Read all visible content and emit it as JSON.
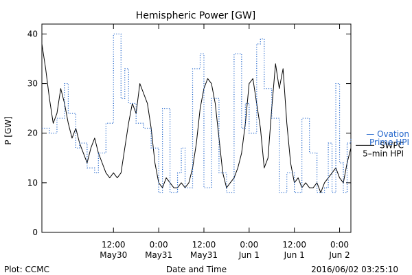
{
  "chart_data": {
    "type": "line",
    "title": "Hemispheric Power [GW]",
    "ylabel": "P [GW]",
    "xlabel": "Date and Time",
    "ylim": [
      0,
      42
    ],
    "yticks": [
      0,
      10,
      20,
      30,
      40
    ],
    "xlim": [
      "2016-05-29T17:00",
      "2016-06-02T03:00"
    ],
    "xticks": [
      {
        "t": "2016-05-30T12:00",
        "line1": "12:00",
        "line2": "May30"
      },
      {
        "t": "2016-05-31T00:00",
        "line1": "0:00",
        "line2": "May31"
      },
      {
        "t": "2016-05-31T12:00",
        "line1": "12:00",
        "line2": "May31"
      },
      {
        "t": "2016-06-01T00:00",
        "line1": "0:00",
        "line2": "Jun 1"
      },
      {
        "t": "2016-06-01T12:00",
        "line1": "12:00",
        "line2": "Jun 1"
      },
      {
        "t": "2016-06-02T00:00",
        "line1": "0:00",
        "line2": "Jun 2"
      }
    ],
    "grid": false,
    "series": [
      {
        "name": "SWPC 5-min HPI",
        "label_lines": [
          "SWPC",
          "5–min HPI"
        ],
        "color": "#000000",
        "style": "solid",
        "points": [
          [
            "2016-05-29T17:00",
            38
          ],
          [
            "2016-05-29T18:00",
            33
          ],
          [
            "2016-05-29T19:00",
            27
          ],
          [
            "2016-05-29T20:00",
            22
          ],
          [
            "2016-05-29T21:00",
            24
          ],
          [
            "2016-05-29T22:00",
            29
          ],
          [
            "2016-05-29T23:00",
            26
          ],
          [
            "2016-05-30T00:00",
            22
          ],
          [
            "2016-05-30T01:00",
            19
          ],
          [
            "2016-05-30T02:00",
            21
          ],
          [
            "2016-05-30T03:00",
            18
          ],
          [
            "2016-05-30T04:00",
            16
          ],
          [
            "2016-05-30T05:00",
            14
          ],
          [
            "2016-05-30T06:00",
            17
          ],
          [
            "2016-05-30T07:00",
            19
          ],
          [
            "2016-05-30T08:00",
            16
          ],
          [
            "2016-05-30T09:00",
            14
          ],
          [
            "2016-05-30T10:00",
            12
          ],
          [
            "2016-05-30T11:00",
            11
          ],
          [
            "2016-05-30T12:00",
            12
          ],
          [
            "2016-05-30T13:00",
            11
          ],
          [
            "2016-05-30T14:00",
            12
          ],
          [
            "2016-05-30T15:00",
            17
          ],
          [
            "2016-05-30T16:00",
            22
          ],
          [
            "2016-05-30T17:00",
            26
          ],
          [
            "2016-05-30T18:00",
            24
          ],
          [
            "2016-05-30T19:00",
            30
          ],
          [
            "2016-05-30T20:00",
            28
          ],
          [
            "2016-05-30T21:00",
            26
          ],
          [
            "2016-05-30T22:00",
            21
          ],
          [
            "2016-05-30T23:00",
            14
          ],
          [
            "2016-05-31T00:00",
            10
          ],
          [
            "2016-05-31T01:00",
            9
          ],
          [
            "2016-05-31T02:00",
            11
          ],
          [
            "2016-05-31T03:00",
            10
          ],
          [
            "2016-05-31T04:00",
            9
          ],
          [
            "2016-05-31T05:00",
            9
          ],
          [
            "2016-05-31T06:00",
            10
          ],
          [
            "2016-05-31T07:00",
            9
          ],
          [
            "2016-05-31T08:00",
            10
          ],
          [
            "2016-05-31T09:00",
            13
          ],
          [
            "2016-05-31T10:00",
            18
          ],
          [
            "2016-05-31T11:00",
            25
          ],
          [
            "2016-05-31T12:00",
            29
          ],
          [
            "2016-05-31T13:00",
            31
          ],
          [
            "2016-05-31T14:00",
            30
          ],
          [
            "2016-05-31T15:00",
            26
          ],
          [
            "2016-05-31T16:00",
            19
          ],
          [
            "2016-05-31T17:00",
            12
          ],
          [
            "2016-05-31T18:00",
            9
          ],
          [
            "2016-05-31T19:00",
            10
          ],
          [
            "2016-05-31T20:00",
            11
          ],
          [
            "2016-05-31T21:00",
            13
          ],
          [
            "2016-05-31T22:00",
            16
          ],
          [
            "2016-05-31T23:00",
            22
          ],
          [
            "2016-06-01T00:00",
            30
          ],
          [
            "2016-06-01T01:00",
            31
          ],
          [
            "2016-06-01T02:00",
            26
          ],
          [
            "2016-06-01T03:00",
            21
          ],
          [
            "2016-06-01T04:00",
            13
          ],
          [
            "2016-06-01T05:00",
            15
          ],
          [
            "2016-06-01T06:00",
            25
          ],
          [
            "2016-06-01T07:00",
            34
          ],
          [
            "2016-06-01T08:00",
            29
          ],
          [
            "2016-06-01T09:00",
            33
          ],
          [
            "2016-06-01T10:00",
            22
          ],
          [
            "2016-06-01T11:00",
            14
          ],
          [
            "2016-06-01T12:00",
            10
          ],
          [
            "2016-06-01T13:00",
            11
          ],
          [
            "2016-06-01T14:00",
            9
          ],
          [
            "2016-06-01T15:00",
            10
          ],
          [
            "2016-06-01T16:00",
            9
          ],
          [
            "2016-06-01T17:00",
            9
          ],
          [
            "2016-06-01T18:00",
            10
          ],
          [
            "2016-06-01T19:00",
            8
          ],
          [
            "2016-06-01T20:00",
            10
          ],
          [
            "2016-06-01T21:00",
            11
          ],
          [
            "2016-06-01T22:00",
            12
          ],
          [
            "2016-06-01T23:00",
            13
          ],
          [
            "2016-06-02T00:00",
            11
          ],
          [
            "2016-06-02T01:00",
            10
          ],
          [
            "2016-06-02T02:00",
            14
          ],
          [
            "2016-06-02T03:00",
            17
          ]
        ]
      },
      {
        "name": "Ovation Prime HPI",
        "label_lines": [
          "— Ovation",
          "Prime HPI"
        ],
        "color": "#2266cc",
        "style": "dotted-step",
        "points": [
          [
            "2016-05-29T17:00",
            21
          ],
          [
            "2016-05-29T19:00",
            20
          ],
          [
            "2016-05-29T21:00",
            23
          ],
          [
            "2016-05-29T23:00",
            30
          ],
          [
            "2016-05-30T00:00",
            24
          ],
          [
            "2016-05-30T02:00",
            17
          ],
          [
            "2016-05-30T03:00",
            18
          ],
          [
            "2016-05-30T05:00",
            13
          ],
          [
            "2016-05-30T07:00",
            12
          ],
          [
            "2016-05-30T08:00",
            16
          ],
          [
            "2016-05-30T10:00",
            22
          ],
          [
            "2016-05-30T12:00",
            40
          ],
          [
            "2016-05-30T14:00",
            27
          ],
          [
            "2016-05-30T15:00",
            33
          ],
          [
            "2016-05-30T16:00",
            26
          ],
          [
            "2016-05-30T18:00",
            22
          ],
          [
            "2016-05-30T20:00",
            21
          ],
          [
            "2016-05-30T22:00",
            17
          ],
          [
            "2016-05-31T00:00",
            8
          ],
          [
            "2016-05-31T01:00",
            25
          ],
          [
            "2016-05-31T03:00",
            8
          ],
          [
            "2016-05-31T05:00",
            12
          ],
          [
            "2016-05-31T06:00",
            17
          ],
          [
            "2016-05-31T07:00",
            9
          ],
          [
            "2016-05-31T09:00",
            33
          ],
          [
            "2016-05-31T11:00",
            36
          ],
          [
            "2016-05-31T12:00",
            9
          ],
          [
            "2016-05-31T14:00",
            27
          ],
          [
            "2016-05-31T16:00",
            12
          ],
          [
            "2016-05-31T18:00",
            8
          ],
          [
            "2016-05-31T20:00",
            36
          ],
          [
            "2016-05-31T22:00",
            21
          ],
          [
            "2016-05-31T23:00",
            26
          ],
          [
            "2016-06-01T00:00",
            20
          ],
          [
            "2016-06-01T02:00",
            38
          ],
          [
            "2016-06-01T03:00",
            39
          ],
          [
            "2016-06-01T04:00",
            29
          ],
          [
            "2016-06-01T06:00",
            23
          ],
          [
            "2016-06-01T08:00",
            8
          ],
          [
            "2016-06-01T10:00",
            12
          ],
          [
            "2016-06-01T12:00",
            8
          ],
          [
            "2016-06-01T14:00",
            23
          ],
          [
            "2016-06-01T16:00",
            16
          ],
          [
            "2016-06-01T18:00",
            8
          ],
          [
            "2016-06-01T20:00",
            9
          ],
          [
            "2016-06-01T21:00",
            18
          ],
          [
            "2016-06-01T22:00",
            8
          ],
          [
            "2016-06-01T23:00",
            30
          ],
          [
            "2016-06-02T00:00",
            14
          ],
          [
            "2016-06-02T01:00",
            8
          ],
          [
            "2016-06-02T02:00",
            18
          ],
          [
            "2016-06-02T03:00",
            19
          ]
        ]
      }
    ]
  },
  "footer": {
    "left": "Plot: CCMC",
    "center": "Date and Time",
    "right": "2016/06/02 03:25:10"
  }
}
